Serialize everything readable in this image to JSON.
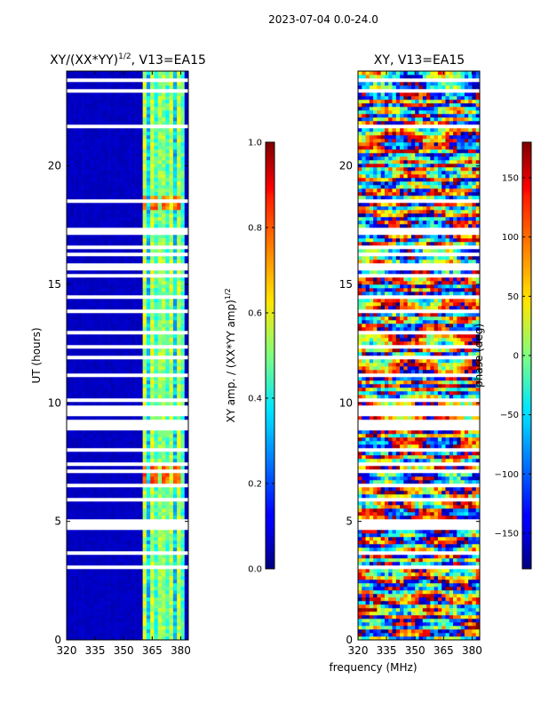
{
  "figure_title": "2023-07-04 0.0-24.0",
  "chart_data": [
    {
      "type": "heatmap",
      "title_main": "XY/(XX*YY)",
      "title_exp": "1/2",
      "title_rest": ", V13=EA15",
      "xlabel": "frequency (MHz)",
      "ylabel": "UT (hours)",
      "x_ticks": [
        "320",
        "335",
        "350",
        "365",
        "380"
      ],
      "x_tick_values": [
        320,
        335,
        350,
        365,
        380
      ],
      "xlim": [
        320,
        384
      ],
      "y_ticks": [
        "0",
        "5",
        "10",
        "15",
        "20"
      ],
      "y_tick_values": [
        0,
        5,
        10,
        15,
        20
      ],
      "ylim": [
        0,
        24
      ],
      "colorbar": {
        "label_main": "XY amp. / (XX*YY amp)",
        "label_exp": "1/2",
        "ticks": [
          "0.0",
          "0.2",
          "0.4",
          "0.6",
          "0.8",
          "1.0"
        ],
        "tick_values": [
          0,
          0.2,
          0.4,
          0.6,
          0.8,
          1.0
        ],
        "range": [
          0,
          1
        ]
      },
      "features": {
        "background_level": 0.05,
        "active_band_mhz": [
          361,
          382
        ],
        "bright_patches_hours": [
          [
            6.4,
            7.4
          ],
          [
            18.2,
            18.8
          ]
        ],
        "bright_patch_level": 0.85
      }
    },
    {
      "type": "heatmap",
      "title": "XY, V13=EA15",
      "xlabel": "frequency (MHz)",
      "ylabel": "",
      "x_ticks": [
        "320",
        "335",
        "350",
        "365",
        "380"
      ],
      "x_tick_values": [
        320,
        335,
        350,
        365,
        380
      ],
      "xlim": [
        320,
        384
      ],
      "y_ticks": [
        "0",
        "5",
        "10",
        "15",
        "20"
      ],
      "y_tick_values": [
        0,
        5,
        10,
        15,
        20
      ],
      "ylim": [
        0,
        24
      ],
      "colorbar": {
        "label": "phase (deg)",
        "ticks": [
          "−150",
          "−100",
          "−50",
          "0",
          "50",
          "100",
          "150"
        ],
        "tick_values": [
          -150,
          -100,
          -50,
          0,
          50,
          100,
          150
        ],
        "range": [
          -180,
          180
        ]
      }
    }
  ]
}
